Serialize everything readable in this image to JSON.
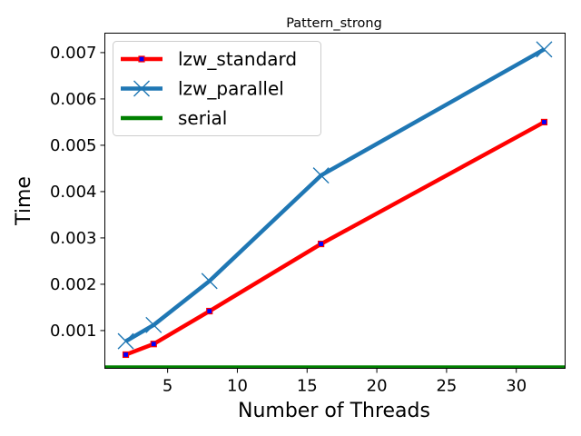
{
  "chart_data": {
    "type": "line",
    "title": "Pattern_strong",
    "xlabel": "Number of Threads",
    "ylabel": "Time",
    "xlim": [
      0.5,
      33.5
    ],
    "ylim": [
      0.000185,
      0.00742
    ],
    "x_ticks": [
      5,
      10,
      15,
      20,
      25,
      30
    ],
    "x_tick_labels": [
      "5",
      "10",
      "15",
      "20",
      "25",
      "30"
    ],
    "y_ticks": [
      0.001,
      0.002,
      0.003,
      0.004,
      0.005,
      0.006,
      0.007
    ],
    "y_tick_labels": [
      "0.001",
      "0.002",
      "0.003",
      "0.004",
      "0.005",
      "0.006",
      "0.007"
    ],
    "grid": false,
    "legend_position": "upper-left",
    "series": [
      {
        "name": "lzw_standard",
        "color": "#ff0000",
        "marker": "square",
        "marker_color": "#0000ff",
        "x": [
          2,
          4,
          8,
          16,
          32
        ],
        "y": [
          0.00048,
          0.00071,
          0.00142,
          0.00287,
          0.0055
        ]
      },
      {
        "name": "lzw_parallel",
        "color": "#1f77b4",
        "marker": "x",
        "x": [
          2,
          4,
          8,
          16,
          32
        ],
        "y": [
          0.00077,
          0.00112,
          0.00207,
          0.00435,
          0.00707
        ]
      },
      {
        "name": "serial",
        "color": "#008000",
        "marker": "none",
        "x": [
          0.5,
          33.5
        ],
        "y": [
          0.000205,
          0.000205
        ]
      }
    ]
  }
}
